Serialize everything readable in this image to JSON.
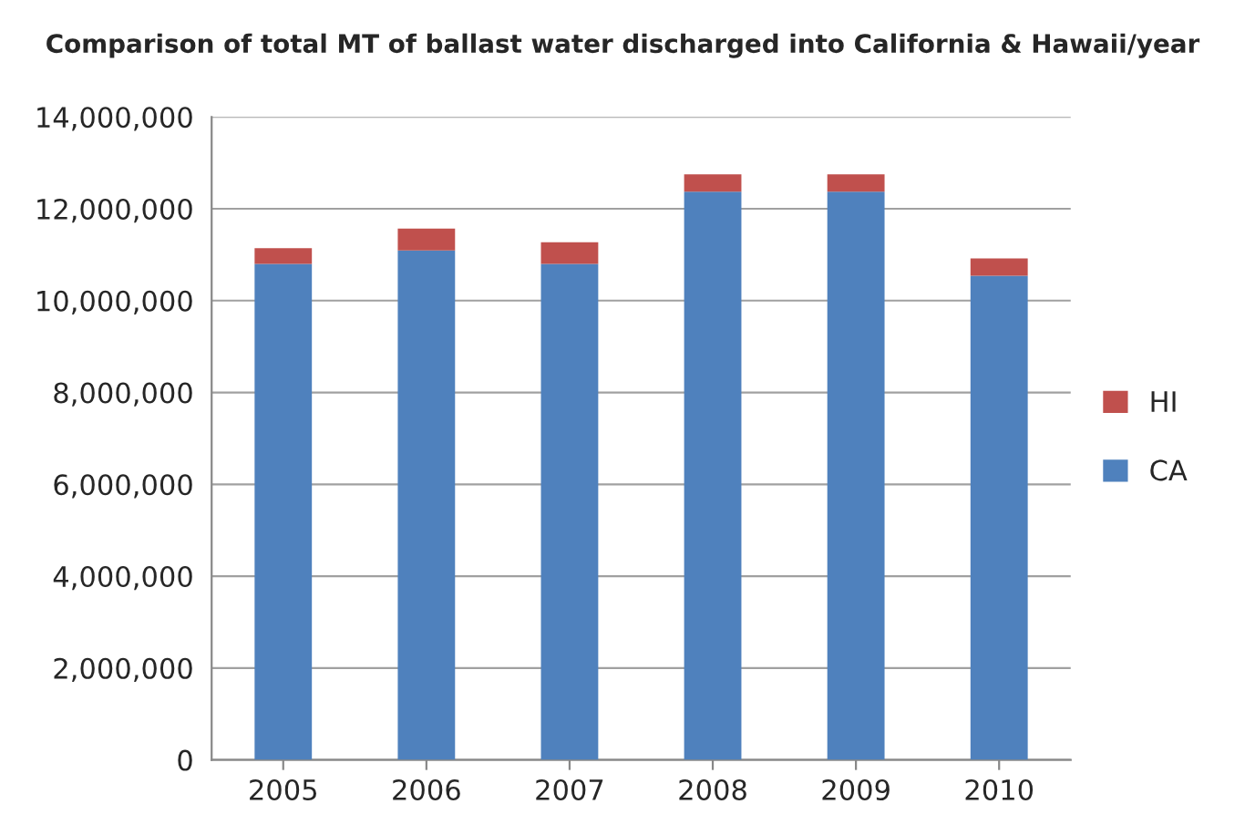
{
  "chart_data": {
    "type": "bar",
    "title": "Comparison of total MT of ballast water discharged into California & Hawaii/year",
    "categories": [
      "2005",
      "2006",
      "2007",
      "2008",
      "2009",
      "2010"
    ],
    "stacked": true,
    "series": [
      {
        "name": "CA",
        "color": "#4f81bd",
        "values": [
          10800000,
          11090000,
          10800000,
          12370000,
          12370000,
          10540000
        ]
      },
      {
        "name": "HI",
        "color": "#c0504d",
        "values": [
          340000,
          480000,
          470000,
          380000,
          380000,
          380000
        ]
      }
    ],
    "ylim": [
      0,
      14000000
    ],
    "yticks": [
      {
        "value": 0,
        "label": "0"
      },
      {
        "value": 2000000,
        "label": "2,000,000"
      },
      {
        "value": 4000000,
        "label": "4,000,000"
      },
      {
        "value": 6000000,
        "label": "6,000,000"
      },
      {
        "value": 8000000,
        "label": "8,000,000"
      },
      {
        "value": 10000000,
        "label": "10,000,000"
      },
      {
        "value": 12000000,
        "label": "12,000,000"
      },
      {
        "value": 14000000,
        "label": "14,000,000"
      }
    ],
    "grid": "y",
    "legend": "right"
  }
}
